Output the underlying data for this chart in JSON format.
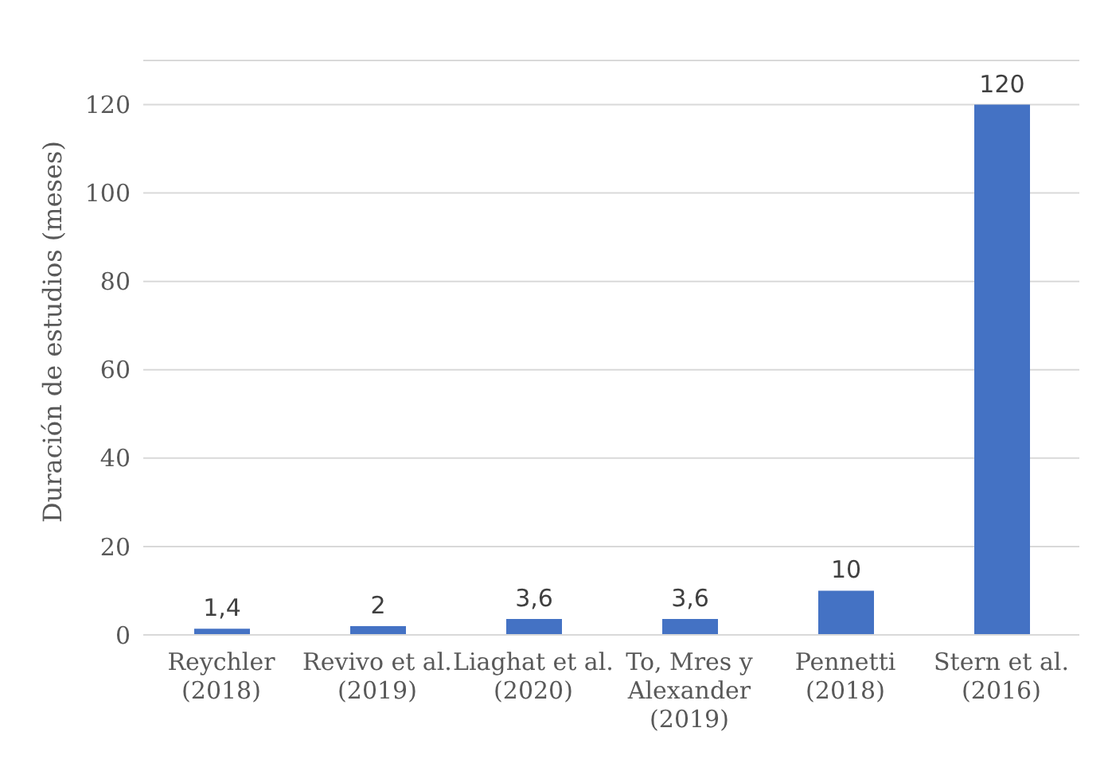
{
  "chart_data": {
    "type": "bar",
    "ylabel": "Duración de estudios (meses)",
    "categories": [
      "Reychler (2018)",
      "Revivo et al. (2019)",
      "Liaghat et al. (2020)",
      "To, Mres y Alexander (2019)",
      "Pennetti (2018)",
      "Stern et al. (2016)"
    ],
    "values": [
      1.4,
      2,
      3.6,
      3.6,
      10,
      120
    ],
    "value_labels": [
      "1,4",
      "2",
      "3,6",
      "3,6",
      "10",
      "120"
    ],
    "color": "#4472c4",
    "ylim": [
      0,
      130
    ],
    "yticks": [
      0,
      20,
      40,
      60,
      80,
      100,
      120
    ],
    "grid": "y"
  }
}
